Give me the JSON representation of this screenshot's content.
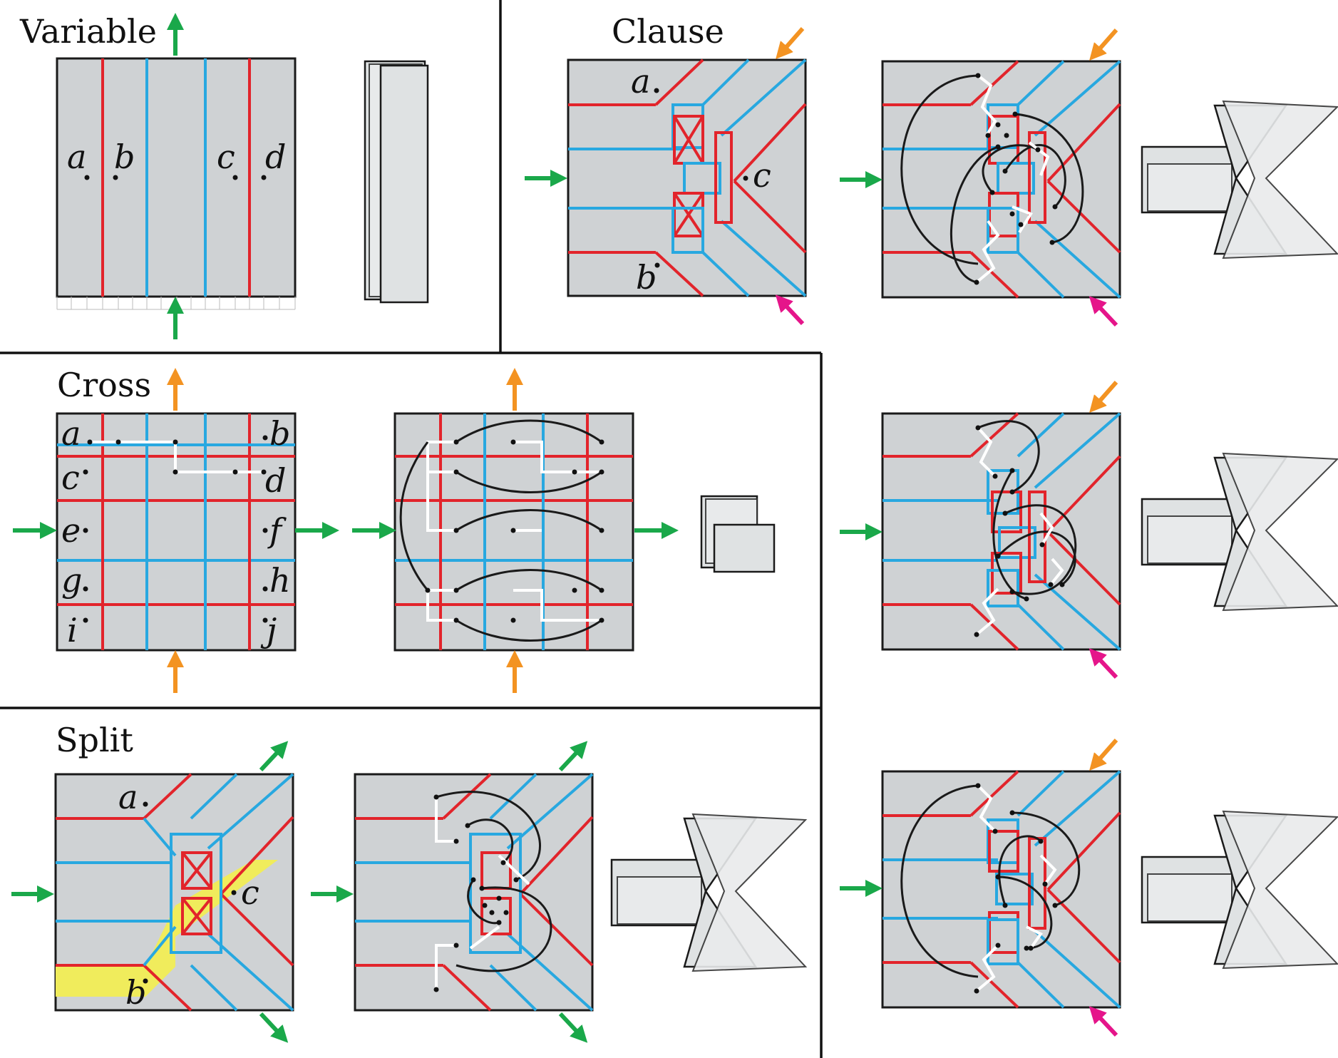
{
  "sections": {
    "variable": {
      "title": "Variable",
      "labels": [
        "a",
        "b",
        "c",
        "d"
      ]
    },
    "clause": {
      "title": "Clause",
      "labels": [
        "a",
        "b",
        "c"
      ]
    },
    "cross": {
      "title": "Cross",
      "labels": [
        "a",
        "b",
        "c",
        "d",
        "e",
        "f",
        "g",
        "h",
        "i",
        "j"
      ]
    },
    "split": {
      "title": "Split",
      "labels": [
        "a",
        "b",
        "c"
      ]
    }
  },
  "colors": {
    "mountain": "#e2242b",
    "valley": "#28a8e0",
    "paper": "#cfd2d4",
    "arrow_green": "#1aa84a",
    "arrow_orange": "#f39322",
    "arrow_magenta": "#e5158a",
    "highlight": "#f0ec5c"
  },
  "icons": [
    "arrow-green-icon",
    "arrow-orange-icon",
    "arrow-magenta-icon"
  ]
}
